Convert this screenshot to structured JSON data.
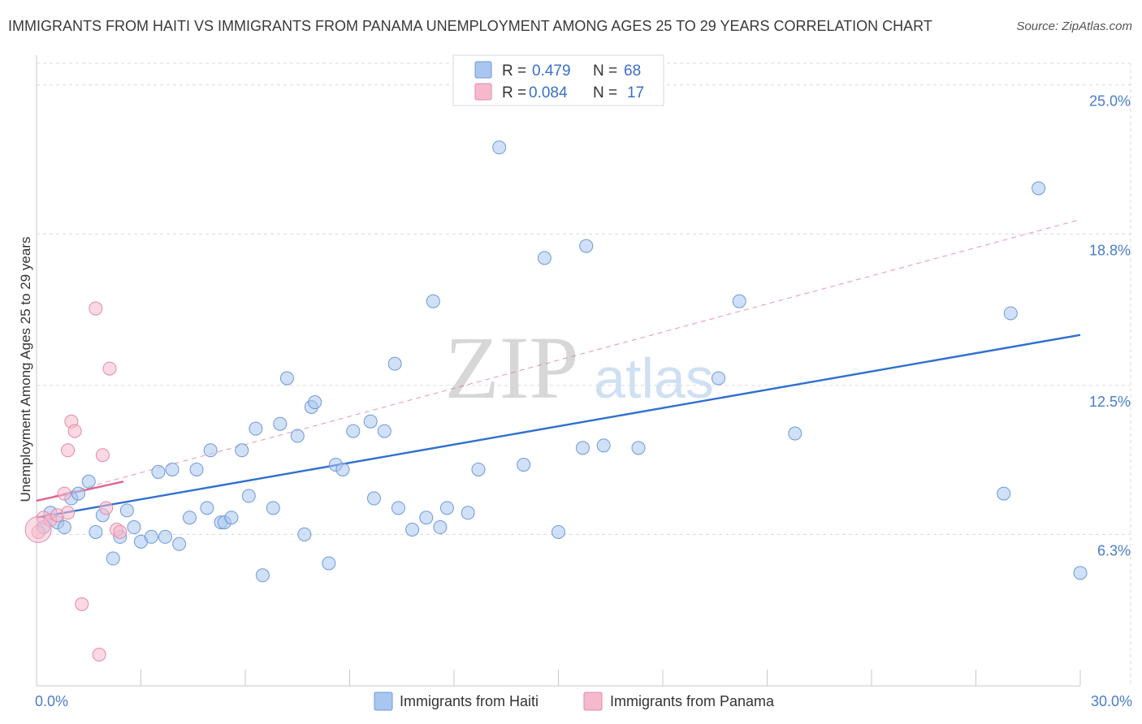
{
  "title": "IMMIGRANTS FROM HAITI VS IMMIGRANTS FROM PANAMA UNEMPLOYMENT AMONG AGES 25 TO 29 YEARS CORRELATION CHART",
  "source": "Source: ZipAtlas.com",
  "watermark": {
    "zip": "ZIP",
    "atlas": "atlas"
  },
  "colors": {
    "haiti_fill": "#a9c6f0",
    "haiti_stroke": "#6d9ad8",
    "haiti_line": "#2f6fd0",
    "panama_fill": "#f6b9cc",
    "panama_stroke": "#e688a6",
    "panama_line": "#e0648f",
    "grid": "#d9d9d9",
    "tick_label": "#4a7cc9"
  },
  "legend": {
    "rows": [
      {
        "r_label": "R =",
        "r_value": "0.479",
        "n_label": "N =",
        "n_value": "68",
        "series": "haiti"
      },
      {
        "r_label": "R =",
        "r_value": "0.084",
        "n_label": "N =",
        "n_value": "17",
        "series": "panama"
      }
    ]
  },
  "chart_data": {
    "type": "scatter",
    "title": "IMMIGRANTS FROM HAITI VS IMMIGRANTS FROM PANAMA UNEMPLOYMENT AMONG AGES 25 TO 29 YEARS CORRELATION CHART",
    "xlabel": "",
    "ylabel": "Unemployment Among Ages 25 to 29 years",
    "xlim": [
      0,
      30
    ],
    "ylim": [
      0,
      25.9
    ],
    "y_ticks": [
      {
        "value": 6.3,
        "label": "6.3%"
      },
      {
        "value": 12.5,
        "label": "12.5%"
      },
      {
        "value": 18.8,
        "label": "18.8%"
      },
      {
        "value": 25.0,
        "label": "25.0%"
      }
    ],
    "x_tick_labels": [
      {
        "value": 0,
        "label": "0.0%"
      },
      {
        "value": 30,
        "label": "30.0%"
      }
    ],
    "x_minor_ticks": [
      3,
      6,
      9,
      12,
      15,
      18,
      21,
      24,
      27,
      30
    ],
    "series": [
      {
        "name": "Immigrants from Haiti",
        "key": "haiti",
        "trend": {
          "x0": 0,
          "y0": 7.0,
          "x1": 30,
          "y1": 14.6
        },
        "points": [
          [
            0.2,
            6.6
          ],
          [
            0.4,
            7.2
          ],
          [
            0.6,
            6.8
          ],
          [
            0.8,
            6.6
          ],
          [
            1.0,
            7.8
          ],
          [
            1.2,
            8.0
          ],
          [
            1.5,
            8.5
          ],
          [
            1.7,
            6.4
          ],
          [
            1.9,
            7.1
          ],
          [
            2.2,
            5.3
          ],
          [
            2.4,
            6.2
          ],
          [
            2.6,
            7.3
          ],
          [
            2.8,
            6.6
          ],
          [
            3.0,
            6.0
          ],
          [
            3.3,
            6.2
          ],
          [
            3.5,
            8.9
          ],
          [
            3.7,
            6.2
          ],
          [
            3.9,
            9.0
          ],
          [
            4.1,
            5.9
          ],
          [
            4.4,
            7.0
          ],
          [
            4.6,
            9.0
          ],
          [
            4.9,
            7.4
          ],
          [
            5.0,
            9.8
          ],
          [
            5.3,
            6.8
          ],
          [
            5.4,
            6.8
          ],
          [
            5.6,
            7.0
          ],
          [
            5.9,
            9.8
          ],
          [
            6.1,
            7.9
          ],
          [
            6.3,
            10.7
          ],
          [
            6.5,
            4.6
          ],
          [
            6.8,
            7.4
          ],
          [
            7.0,
            10.9
          ],
          [
            7.2,
            12.8
          ],
          [
            7.5,
            10.4
          ],
          [
            7.7,
            6.3
          ],
          [
            7.9,
            11.6
          ],
          [
            8.0,
            11.8
          ],
          [
            8.4,
            5.1
          ],
          [
            8.6,
            9.2
          ],
          [
            8.8,
            9.0
          ],
          [
            9.1,
            10.6
          ],
          [
            9.6,
            11.0
          ],
          [
            9.7,
            7.8
          ],
          [
            10.0,
            10.6
          ],
          [
            10.3,
            13.4
          ],
          [
            10.4,
            7.4
          ],
          [
            10.8,
            6.5
          ],
          [
            11.2,
            7.0
          ],
          [
            11.4,
            16.0
          ],
          [
            11.6,
            6.6
          ],
          [
            11.8,
            7.4
          ],
          [
            12.4,
            7.2
          ],
          [
            12.7,
            9.0
          ],
          [
            13.3,
            22.4
          ],
          [
            14.0,
            9.2
          ],
          [
            14.6,
            17.8
          ],
          [
            15.0,
            6.4
          ],
          [
            15.7,
            9.9
          ],
          [
            15.8,
            18.3
          ],
          [
            16.3,
            10.0
          ],
          [
            17.3,
            9.9
          ],
          [
            19.6,
            12.8
          ],
          [
            20.2,
            16.0
          ],
          [
            21.8,
            10.5
          ],
          [
            27.8,
            8.0
          ],
          [
            28.0,
            15.5
          ],
          [
            28.8,
            20.7
          ],
          [
            30.0,
            4.7
          ]
        ]
      },
      {
        "name": "Immigrants from Panama",
        "key": "panama",
        "trend": {
          "x0": 0,
          "y0": 7.7,
          "x1": 2.5,
          "y1": 8.5
        },
        "trend_ext": {
          "x0": 0,
          "y0": 7.7,
          "x1": 30,
          "y1": 19.4
        },
        "points": [
          [
            0.05,
            6.4
          ],
          [
            0.2,
            7.0
          ],
          [
            0.4,
            6.9
          ],
          [
            0.6,
            7.1
          ],
          [
            0.8,
            8.0
          ],
          [
            0.9,
            7.2
          ],
          [
            0.9,
            9.8
          ],
          [
            1.0,
            11.0
          ],
          [
            1.1,
            10.6
          ],
          [
            1.3,
            3.4
          ],
          [
            1.7,
            15.7
          ],
          [
            1.8,
            1.3
          ],
          [
            1.9,
            9.6
          ],
          [
            2.0,
            7.4
          ],
          [
            2.1,
            13.2
          ],
          [
            2.3,
            6.5
          ],
          [
            2.4,
            6.4
          ]
        ]
      }
    ]
  },
  "bottom_legend": {
    "haiti_label": "Immigrants from Haiti",
    "panama_label": "Immigrants from Panama"
  }
}
